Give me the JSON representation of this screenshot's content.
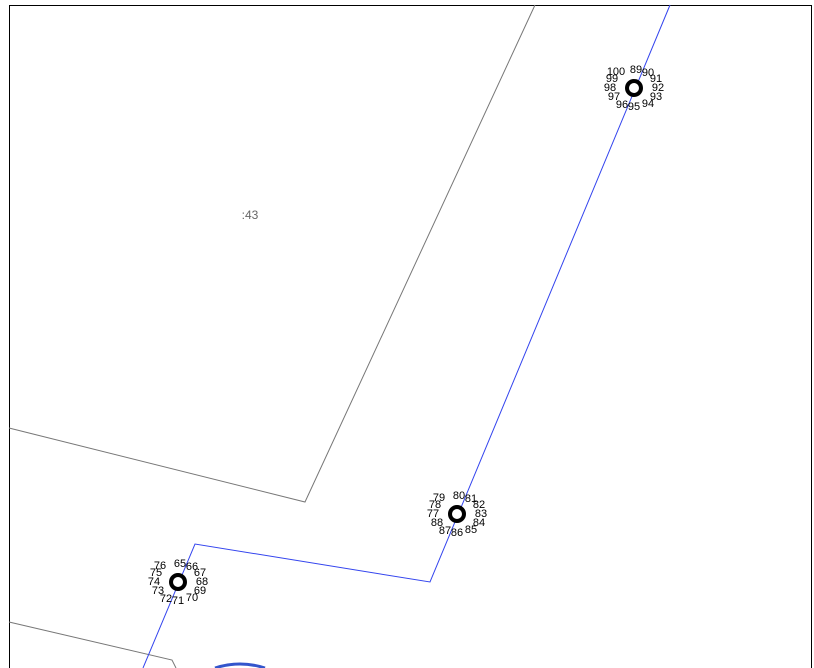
{
  "map": {
    "parcel_label": ":43",
    "clusters": [
      {
        "labels": [
          "100",
          "89",
          "90",
          "99",
          "91",
          "98",
          "92",
          "97",
          "93",
          "96",
          "95",
          "94"
        ]
      },
      {
        "labels": [
          "79",
          "80",
          "81",
          "78",
          "82",
          "77",
          "83",
          "88",
          "84",
          "87",
          "86",
          "85"
        ]
      },
      {
        "labels": [
          "76",
          "65",
          "66",
          "75",
          "67",
          "74",
          "68",
          "73",
          "69",
          "72",
          "71",
          "70"
        ]
      }
    ]
  }
}
